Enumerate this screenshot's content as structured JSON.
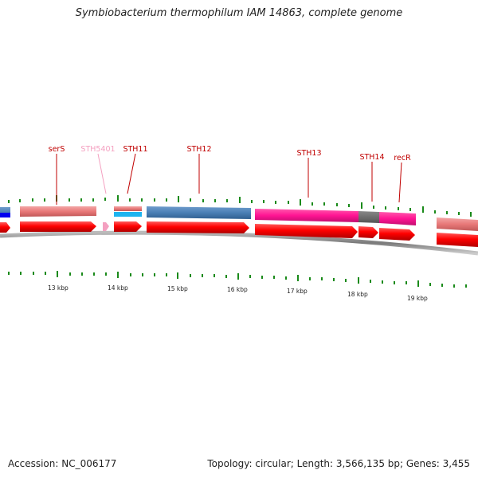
{
  "title": "Symbiobacterium thermophilum IAM 14863, complete genome",
  "footer": {
    "accession": "Accession: NC_006177",
    "stats": "Topology: circular; Length: 3,566,135 bp; Genes: 3,455"
  },
  "gene_labels": [
    {
      "name": "serS",
      "color": "#c00000"
    },
    {
      "name": "STH5401",
      "color": "#f4a0c0"
    },
    {
      "name": "STH11",
      "color": "#c00000"
    },
    {
      "name": "STH12",
      "color": "#c00000"
    },
    {
      "name": "STH13",
      "color": "#c00000"
    },
    {
      "name": "STH14",
      "color": "#c00000"
    },
    {
      "name": "recR",
      "color": "#c00000"
    }
  ],
  "kbp_labels": [
    "13 kbp",
    "14 kbp",
    "15 kbp",
    "16 kbp",
    "17 kbp",
    "18 kbp",
    "19 kbp"
  ],
  "colors": {
    "cds_red": "#ff0000",
    "salmon": "#e87878",
    "steel_blue": "#4a7fb5",
    "magenta": "#ff1493",
    "gray": "#666666",
    "cyan": "#1eb4f0",
    "blue": "#0000ee",
    "tick_green": "#1a8a1a",
    "backbone": "#888888"
  }
}
